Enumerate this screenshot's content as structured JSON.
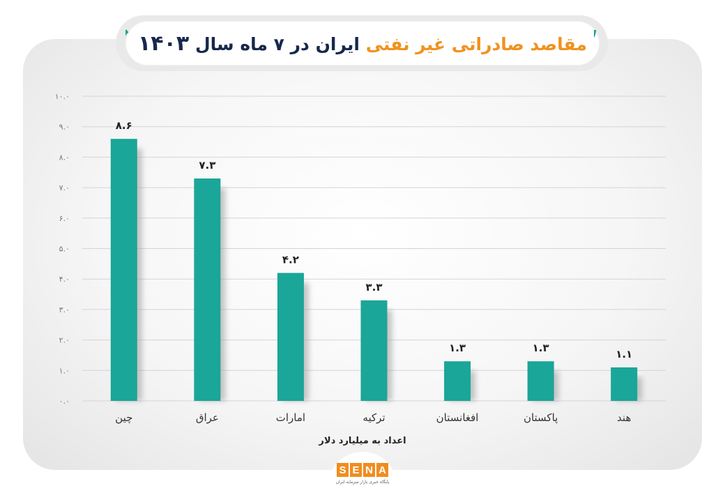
{
  "title": {
    "part_orange": "مقاصد صادراتی غیر نفتی",
    "part_navy": "ایران در ۷ ماه سال",
    "year": "۱۴۰۳"
  },
  "icons": {
    "open_quote": "quote-open-icon",
    "close_quote": "quote-close-icon"
  },
  "colors": {
    "bar": "#1aa698",
    "accent": "#f0921f",
    "navy": "#17284c"
  },
  "chart_data": {
    "type": "bar",
    "categories": [
      "چین",
      "عراق",
      "امارات",
      "ترکیه",
      "افغانستان",
      "پاکستان",
      "هند"
    ],
    "values": [
      8.6,
      7.3,
      4.2,
      3.3,
      1.3,
      1.3,
      1.1
    ],
    "data_labels": [
      "۸.۶",
      "۷.۳",
      "۴.۲",
      "۳.۳",
      "۱.۳",
      "۱.۳",
      "۱.۱"
    ],
    "y_ticks": [
      0,
      1,
      2,
      3,
      4,
      5,
      6,
      7,
      8,
      9,
      10
    ],
    "y_tick_labels": [
      "۰.۰",
      "۱.۰",
      "۲.۰",
      "۳.۰",
      "۴.۰",
      "۵.۰",
      "۶.۰",
      "۷.۰",
      "۸.۰",
      "۹.۰",
      "۱۰.۰"
    ],
    "ylim": [
      0,
      10
    ],
    "xlabel": "اعداد به میلیارد دلار",
    "ylabel": "",
    "grid": true,
    "legend": "none"
  },
  "logo": {
    "letters": [
      "S",
      "E",
      "N",
      "A"
    ],
    "subtitle": "پایگاه خبری بازار سرمایه ایران"
  }
}
